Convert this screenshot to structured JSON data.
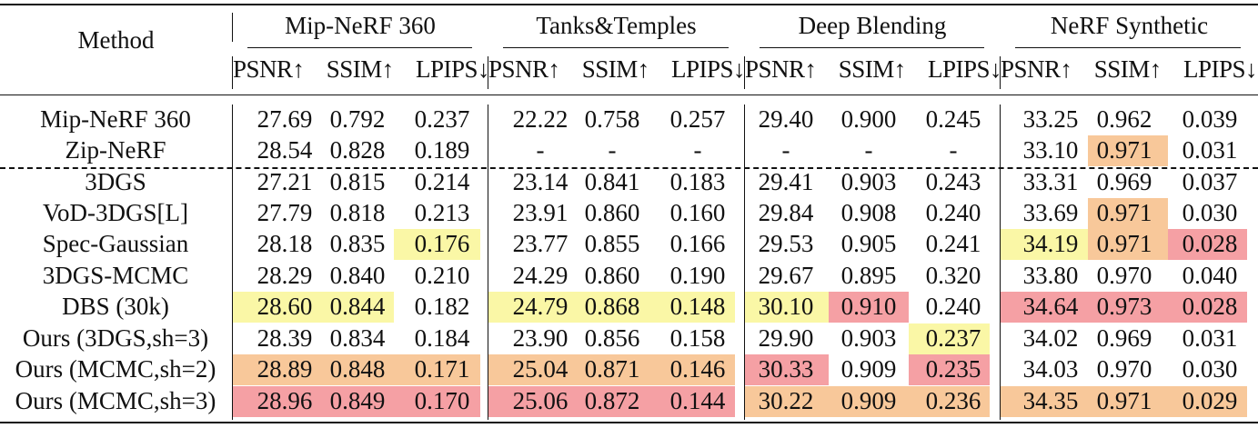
{
  "header": {
    "method": "Method",
    "datasets": [
      "Mip-NeRF 360",
      "Tanks&Temples",
      "Deep Blending",
      "NeRF Synthetic"
    ],
    "metrics": [
      "PSNR↑",
      "SSIM↑",
      "LPIPS↓"
    ]
  },
  "rows": [
    {
      "method": "Mip-NeRF 360",
      "values": [
        "27.69",
        "0.792",
        "0.237",
        "22.22",
        "0.758",
        "0.257",
        "29.40",
        "0.900",
        "0.245",
        "33.25",
        "0.962",
        "0.039"
      ]
    },
    {
      "method": "Zip-NeRF",
      "values": [
        "28.54",
        "0.828",
        "0.189",
        "-",
        "-",
        "-",
        "-",
        "-",
        "-",
        "33.10",
        "0.971",
        "0.031"
      ]
    },
    {
      "method": "3DGS",
      "values": [
        "27.21",
        "0.815",
        "0.214",
        "23.14",
        "0.841",
        "0.183",
        "29.41",
        "0.903",
        "0.243",
        "33.31",
        "0.969",
        "0.037"
      ]
    },
    {
      "method": "VoD-3DGS[L]",
      "values": [
        "27.79",
        "0.818",
        "0.213",
        "23.91",
        "0.860",
        "0.160",
        "29.84",
        "0.908",
        "0.240",
        "33.69",
        "0.971",
        "0.030"
      ]
    },
    {
      "method": "Spec-Gaussian",
      "values": [
        "28.18",
        "0.835",
        "0.176",
        "23.77",
        "0.855",
        "0.166",
        "29.53",
        "0.905",
        "0.241",
        "34.19",
        "0.971",
        "0.028"
      ]
    },
    {
      "method": "3DGS-MCMC",
      "values": [
        "28.29",
        "0.840",
        "0.210",
        "24.29",
        "0.860",
        "0.190",
        "29.67",
        "0.895",
        "0.320",
        "33.80",
        "0.970",
        "0.040"
      ]
    },
    {
      "method": "DBS (30k)",
      "values": [
        "28.60",
        "0.844",
        "0.182",
        "24.79",
        "0.868",
        "0.148",
        "30.10",
        "0.910",
        "0.240",
        "34.64",
        "0.973",
        "0.028"
      ]
    },
    {
      "method": "Ours (3DGS,sh=3)",
      "values": [
        "28.39",
        "0.834",
        "0.184",
        "23.90",
        "0.856",
        "0.158",
        "29.90",
        "0.903",
        "0.237",
        "34.02",
        "0.969",
        "0.031"
      ]
    },
    {
      "method": "Ours (MCMC,sh=2)",
      "values": [
        "28.89",
        "0.848",
        "0.171",
        "25.04",
        "0.871",
        "0.146",
        "30.33",
        "0.909",
        "0.235",
        "34.03",
        "0.970",
        "0.030"
      ]
    },
    {
      "method": "Ours (MCMC,sh=3)",
      "values": [
        "28.96",
        "0.849",
        "0.170",
        "25.06",
        "0.872",
        "0.144",
        "30.22",
        "0.909",
        "0.236",
        "34.35",
        "0.971",
        "0.029"
      ]
    }
  ],
  "highlights": [
    {
      "row": 1,
      "col": 10,
      "color": "orange"
    },
    {
      "row": 3,
      "col": 10,
      "color": "orange"
    },
    {
      "row": 4,
      "col": 2,
      "color": "yellow"
    },
    {
      "row": 4,
      "col": 9,
      "color": "yellow"
    },
    {
      "row": 4,
      "col": 10,
      "color": "orange"
    },
    {
      "row": 4,
      "col": 11,
      "color": "red"
    },
    {
      "row": 6,
      "col": 0,
      "color": "yellow"
    },
    {
      "row": 6,
      "col": 1,
      "color": "yellow"
    },
    {
      "row": 6,
      "col": 3,
      "color": "yellow"
    },
    {
      "row": 6,
      "col": 4,
      "color": "yellow"
    },
    {
      "row": 6,
      "col": 5,
      "color": "yellow"
    },
    {
      "row": 6,
      "col": 6,
      "color": "yellow"
    },
    {
      "row": 6,
      "col": 7,
      "color": "red"
    },
    {
      "row": 6,
      "col": 9,
      "color": "red"
    },
    {
      "row": 6,
      "col": 10,
      "color": "red"
    },
    {
      "row": 6,
      "col": 11,
      "color": "red"
    },
    {
      "row": 7,
      "col": 8,
      "color": "yellow"
    },
    {
      "row": 8,
      "col": 0,
      "color": "orange"
    },
    {
      "row": 8,
      "col": 1,
      "color": "orange"
    },
    {
      "row": 8,
      "col": 2,
      "color": "orange"
    },
    {
      "row": 8,
      "col": 3,
      "color": "orange"
    },
    {
      "row": 8,
      "col": 4,
      "color": "orange"
    },
    {
      "row": 8,
      "col": 5,
      "color": "orange"
    },
    {
      "row": 8,
      "col": 6,
      "color": "red"
    },
    {
      "row": 8,
      "col": 8,
      "color": "red"
    },
    {
      "row": 9,
      "col": 0,
      "color": "red"
    },
    {
      "row": 9,
      "col": 1,
      "color": "red"
    },
    {
      "row": 9,
      "col": 2,
      "color": "red"
    },
    {
      "row": 9,
      "col": 3,
      "color": "red"
    },
    {
      "row": 9,
      "col": 4,
      "color": "red"
    },
    {
      "row": 9,
      "col": 5,
      "color": "red"
    },
    {
      "row": 9,
      "col": 6,
      "color": "orange"
    },
    {
      "row": 9,
      "col": 7,
      "color": "orange"
    },
    {
      "row": 9,
      "col": 8,
      "color": "orange"
    },
    {
      "row": 9,
      "col": 9,
      "color": "orange"
    },
    {
      "row": 9,
      "col": 10,
      "color": "orange"
    },
    {
      "row": 9,
      "col": 11,
      "color": "orange"
    }
  ],
  "colors": {
    "yellow": "#faf7a6",
    "orange": "#f8c89a",
    "red": "#f5a0a4"
  }
}
